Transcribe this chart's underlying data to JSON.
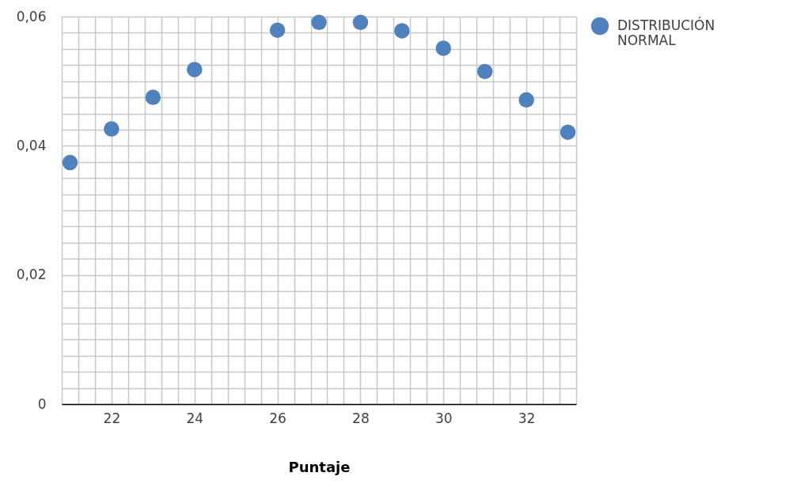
{
  "chart_data": {
    "type": "scatter",
    "xlabel": "Puntaje",
    "x": [
      21,
      22,
      23,
      24,
      26,
      27,
      28,
      29,
      30,
      31,
      32,
      33
    ],
    "series": [
      {
        "name": "DISTRIBUCIÓN NORMAL",
        "color": "#4f81bd",
        "values": [
          0.0374,
          0.0426,
          0.0475,
          0.0518,
          0.0579,
          0.0591,
          0.0591,
          0.0578,
          0.0551,
          0.0515,
          0.0471,
          0.0421
        ]
      }
    ],
    "xlim": [
      20.8,
      33.2
    ],
    "xticks": [
      {
        "value": 20.8,
        "label": null
      },
      {
        "value": 21.2,
        "label": null
      },
      {
        "value": 21.6,
        "label": null
      },
      22,
      {
        "value": 22.4,
        "label": null
      },
      {
        "value": 22.8,
        "label": null
      },
      {
        "value": 23.2,
        "label": null
      },
      {
        "value": 23.6,
        "label": null
      },
      24,
      {
        "value": 24.4,
        "label": null
      },
      {
        "value": 24.8,
        "label": null
      },
      {
        "value": 25.2,
        "label": null
      },
      {
        "value": 25.6,
        "label": null
      },
      26,
      {
        "value": 26.4,
        "label": null
      },
      {
        "value": 26.8,
        "label": null
      },
      {
        "value": 27.2,
        "label": null
      },
      {
        "value": 27.6,
        "label": null
      },
      28,
      {
        "value": 28.4,
        "label": null
      },
      {
        "value": 28.8,
        "label": null
      },
      {
        "value": 29.2,
        "label": null
      },
      {
        "value": 29.6,
        "label": null
      },
      30,
      {
        "value": 30.4,
        "label": null
      },
      {
        "value": 30.8,
        "label": null
      },
      {
        "value": 31.2,
        "label": null
      },
      {
        "value": 31.6,
        "label": null
      },
      32,
      {
        "value": 32.4,
        "label": null
      },
      {
        "value": 32.8,
        "label": null
      },
      {
        "value": 33.2,
        "label": null
      }
    ],
    "ylim": [
      0,
      0.06
    ],
    "yticks": [
      {
        "value": 0,
        "label": "0"
      },
      {
        "value": 0.0025,
        "label": null
      },
      {
        "value": 0.005,
        "label": null
      },
      {
        "value": 0.0075,
        "label": null
      },
      {
        "value": 0.01,
        "label": null
      },
      {
        "value": 0.0125,
        "label": null
      },
      {
        "value": 0.015,
        "label": null
      },
      {
        "value": 0.0175,
        "label": null
      },
      {
        "value": 0.02,
        "label": "0,02"
      },
      {
        "value": 0.0225,
        "label": null
      },
      {
        "value": 0.025,
        "label": null
      },
      {
        "value": 0.0275,
        "label": null
      },
      {
        "value": 0.03,
        "label": null
      },
      {
        "value": 0.0325,
        "label": null
      },
      {
        "value": 0.035,
        "label": null
      },
      {
        "value": 0.0375,
        "label": null
      },
      {
        "value": 0.04,
        "label": "0,04"
      },
      {
        "value": 0.0425,
        "label": null
      },
      {
        "value": 0.045,
        "label": null
      },
      {
        "value": 0.0475,
        "label": null
      },
      {
        "value": 0.05,
        "label": null
      },
      {
        "value": 0.0525,
        "label": null
      },
      {
        "value": 0.055,
        "label": null
      },
      {
        "value": 0.0575,
        "label": null
      },
      {
        "value": 0.06,
        "label": "0,06"
      }
    ],
    "grid": true,
    "legend": "top right",
    "marker": "circle"
  }
}
